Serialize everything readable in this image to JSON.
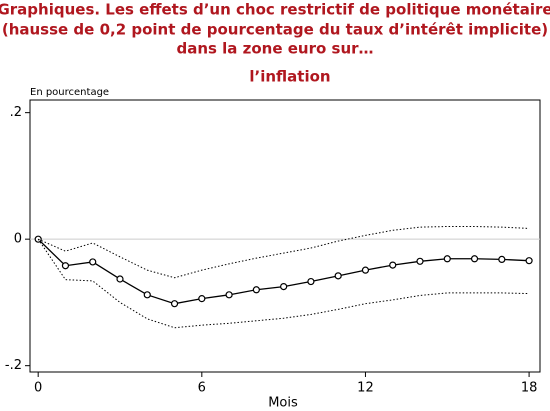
{
  "chart_data": {
    "type": "line",
    "title": [
      "Graphiques.  Les effets d’un choc restrictif de politique monétaire",
      "(hausse de 0,2 point de pourcentage du taux d’intérêt implicite)",
      "dans la zone euro sur…"
    ],
    "subtitle": "l’inflation",
    "y_axis_label": "En pourcentage",
    "x_axis_label": "Mois",
    "x": [
      0,
      1,
      2,
      3,
      4,
      5,
      6,
      7,
      8,
      9,
      10,
      11,
      12,
      13,
      14,
      15,
      16,
      17,
      18
    ],
    "series": [
      {
        "color": "#000000",
        "marker": "circle",
        "dash": false,
        "values": [
          0,
          -0.042,
          -0.036,
          -0.063,
          -0.088,
          -0.102,
          -0.094,
          -0.088,
          -0.08,
          -0.075,
          -0.067,
          -0.058,
          -0.049,
          -0.041,
          -0.035,
          -0.031,
          -0.031,
          -0.032,
          -0.034
        ]
      },
      {
        "color": "#000000",
        "marker": "none",
        "dash": true,
        "values": [
          0,
          -0.019,
          -0.006,
          -0.028,
          -0.049,
          -0.061,
          -0.049,
          -0.039,
          -0.03,
          -0.022,
          -0.014,
          -0.003,
          0.006,
          0.014,
          0.019,
          0.02,
          0.02,
          0.019,
          0.017
        ]
      },
      {
        "color": "#000000",
        "marker": "none",
        "dash": true,
        "values": [
          0,
          -0.064,
          -0.066,
          -0.1,
          -0.126,
          -0.14,
          -0.136,
          -0.133,
          -0.129,
          -0.125,
          -0.119,
          -0.111,
          -0.102,
          -0.096,
          -0.089,
          -0.085,
          -0.085,
          -0.085,
          -0.086
        ]
      }
    ],
    "xlim": [
      -0.3,
      18.4
    ],
    "xticks": [
      0,
      6,
      12,
      18
    ],
    "ylim": [
      -0.21,
      0.22
    ],
    "yticks": [
      {
        "value": -0.2,
        "label": "-.2"
      },
      0,
      {
        "value": 0.2,
        "label": ".2"
      }
    ],
    "reference_line": 0,
    "title_color": "#b0171f"
  }
}
